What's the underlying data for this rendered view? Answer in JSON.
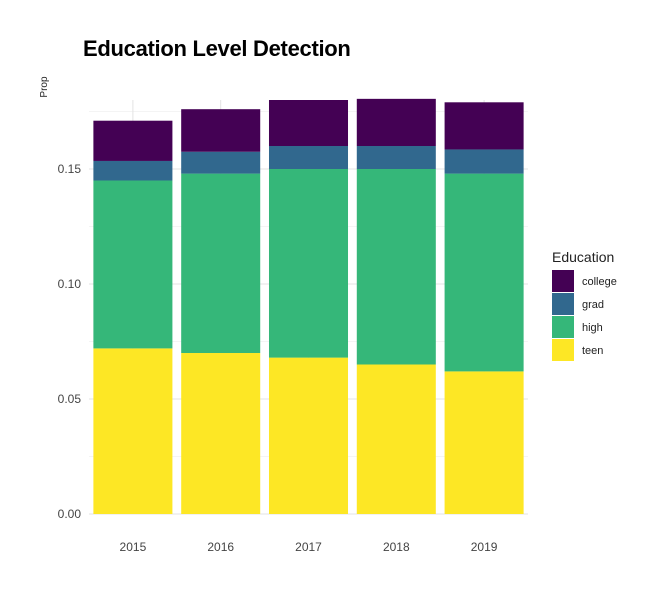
{
  "chart_data": {
    "type": "bar",
    "stacked": true,
    "title": "Education Level Detection",
    "xlabel": "",
    "ylabel": "Prop",
    "categories": [
      "2015",
      "2016",
      "2017",
      "2018",
      "2019"
    ],
    "ylim": [
      0,
      0.18
    ],
    "yticks": [
      0.0,
      0.05,
      0.1,
      0.15
    ],
    "ytick_labels": [
      "0.00",
      "0.05",
      "0.10",
      "0.15"
    ],
    "grid": true,
    "legend": {
      "title": "Education",
      "position": "right"
    },
    "series": [
      {
        "name": "teen",
        "color": "#fde725",
        "values": [
          0.072,
          0.07,
          0.068,
          0.065,
          0.062
        ]
      },
      {
        "name": "high",
        "color": "#35b779",
        "values": [
          0.073,
          0.078,
          0.082,
          0.085,
          0.086
        ]
      },
      {
        "name": "grad",
        "color": "#31688e",
        "values": [
          0.0085,
          0.0095,
          0.01,
          0.01,
          0.0105
        ]
      },
      {
        "name": "college",
        "color": "#440154",
        "values": [
          0.0175,
          0.0185,
          0.02,
          0.0205,
          0.0205
        ]
      }
    ],
    "legend_order": [
      "college",
      "grad",
      "high",
      "teen"
    ]
  }
}
